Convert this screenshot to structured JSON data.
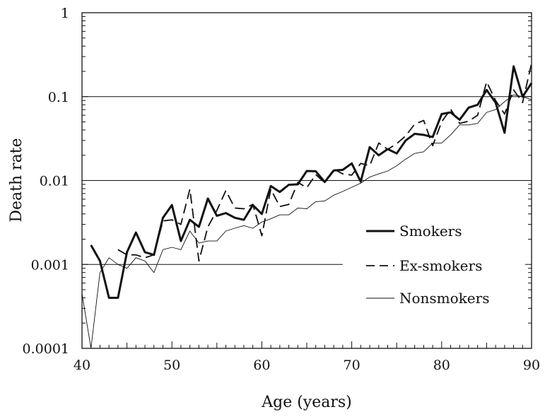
{
  "chart_data": {
    "type": "line",
    "title": "",
    "xlabel": "Age (years)",
    "ylabel": "Death rate",
    "y_scale": "log",
    "xlim": [
      40,
      90
    ],
    "ylim": [
      0.0001,
      1
    ],
    "x_ticks": [
      40,
      50,
      60,
      70,
      80,
      90
    ],
    "x_tick_labels": [
      "40",
      "50",
      "60",
      "70",
      "80",
      "90"
    ],
    "y_ticks": [
      0.0001,
      0.001,
      0.01,
      0.1,
      1
    ],
    "y_tick_labels": [
      "0.0001",
      "0.001",
      "0.01",
      "0.1",
      "1"
    ],
    "gridlines_y": [
      0.001,
      0.01,
      0.1
    ],
    "legend_position": "right",
    "series": [
      {
        "name": "Smokers",
        "style": "thick-solid",
        "color": "#111111",
        "x": [
          41,
          42,
          43,
          44,
          45,
          46,
          47,
          48,
          49,
          50,
          51,
          52,
          53,
          54,
          55,
          56,
          57,
          58,
          59,
          60,
          61,
          62,
          63,
          64,
          65,
          66,
          67,
          68,
          69,
          70,
          71,
          72,
          73,
          74,
          75,
          76,
          77,
          78,
          79,
          80,
          81,
          82,
          83,
          84,
          85,
          86,
          87,
          88,
          89,
          90
        ],
        "y": [
          0.0017,
          0.0011,
          0.0004,
          0.0004,
          0.0014,
          0.0024,
          0.0014,
          0.0013,
          0.0036,
          0.0051,
          0.0019,
          0.0034,
          0.0028,
          0.0061,
          0.0038,
          0.0041,
          0.0036,
          0.0034,
          0.0051,
          0.004,
          0.0086,
          0.0073,
          0.0089,
          0.009,
          0.013,
          0.0129,
          0.0096,
          0.0132,
          0.0134,
          0.016,
          0.0097,
          0.025,
          0.02,
          0.0237,
          0.021,
          0.03,
          0.036,
          0.035,
          0.033,
          0.062,
          0.065,
          0.053,
          0.074,
          0.08,
          0.12,
          0.085,
          0.037,
          0.23,
          0.1,
          0.145
        ]
      },
      {
        "name": "Ex-smokers",
        "style": "dashed",
        "color": "#111111",
        "x": [
          44,
          45,
          46,
          47,
          48,
          49,
          50,
          51,
          52,
          53,
          54,
          55,
          56,
          57,
          58,
          59,
          60,
          61,
          62,
          63,
          64,
          65,
          66,
          67,
          68,
          69,
          70,
          71,
          72,
          73,
          74,
          75,
          76,
          77,
          78,
          79,
          80,
          81,
          82,
          83,
          84,
          85,
          86,
          87,
          88,
          89,
          90
        ],
        "y": [
          0.0015,
          0.0013,
          0.0013,
          0.0012,
          0.0013,
          0.0033,
          0.0034,
          0.003,
          0.0079,
          0.0011,
          0.0028,
          0.0044,
          0.0076,
          0.0047,
          0.0046,
          0.0052,
          0.0022,
          0.0079,
          0.0049,
          0.0052,
          0.0095,
          0.0082,
          0.0118,
          0.0094,
          0.0137,
          0.012,
          0.0116,
          0.016,
          0.015,
          0.028,
          0.0235,
          0.0275,
          0.034,
          0.047,
          0.052,
          0.026,
          0.05,
          0.071,
          0.048,
          0.051,
          0.06,
          0.15,
          0.09,
          0.062,
          0.12,
          0.085,
          0.25
        ]
      },
      {
        "name": "Nonsmokers",
        "style": "thin-solid",
        "color": "#111111",
        "x": [
          40,
          41,
          42,
          43,
          44,
          45,
          46,
          47,
          48,
          49,
          50,
          51,
          52,
          53,
          54,
          55,
          56,
          57,
          58,
          59,
          60,
          61,
          62,
          63,
          64,
          65,
          66,
          67,
          68,
          69,
          70,
          71,
          72,
          73,
          74,
          75,
          76,
          77,
          78,
          79,
          80,
          81,
          82,
          83,
          84,
          85,
          86,
          87,
          88,
          89,
          90
        ],
        "y": [
          0.00045,
          0.0001,
          0.0008,
          0.0012,
          0.001,
          0.0009,
          0.0012,
          0.0011,
          0.0008,
          0.0015,
          0.0016,
          0.0015,
          0.0025,
          0.0018,
          0.0019,
          0.0019,
          0.0025,
          0.0027,
          0.0029,
          0.0027,
          0.0032,
          0.0035,
          0.0039,
          0.0039,
          0.0047,
          0.0046,
          0.0056,
          0.0057,
          0.0067,
          0.0074,
          0.0083,
          0.0093,
          0.011,
          0.012,
          0.013,
          0.015,
          0.018,
          0.021,
          0.022,
          0.028,
          0.028,
          0.035,
          0.046,
          0.046,
          0.048,
          0.065,
          0.07,
          0.087,
          0.105,
          0.1,
          0.092
        ]
      }
    ]
  }
}
